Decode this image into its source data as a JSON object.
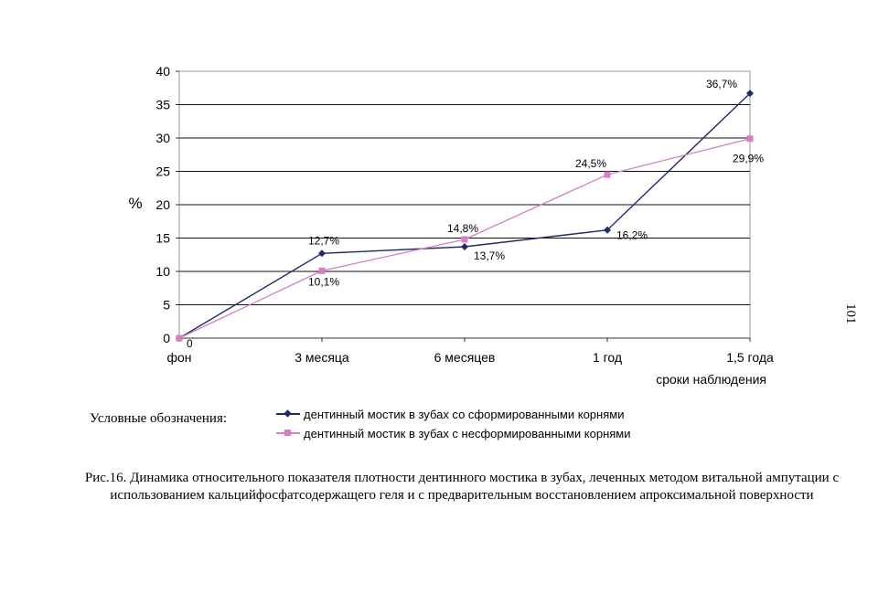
{
  "chart_data": {
    "type": "line",
    "categories": [
      "фон",
      "3 месяца",
      "6 месяцев",
      "1 год",
      "1,5 года"
    ],
    "series": [
      {
        "name": "дентинный мостик в зубах со сформированными корнями",
        "values": [
          0,
          12.7,
          13.7,
          16.2,
          36.7
        ],
        "labels": [
          "0",
          "12,7%",
          "13,7%",
          "16,2%",
          "36,7%"
        ],
        "color": "#1f2a6b",
        "marker": "diamond"
      },
      {
        "name": "дентинный мостик в зубах с несформированными корнями",
        "values": [
          0,
          10.1,
          14.8,
          24.5,
          29.9
        ],
        "labels": [
          "",
          "10,1%",
          "14,8%",
          "24,5%",
          "29,9%"
        ],
        "color": "#d67fc0",
        "marker": "square"
      }
    ],
    "ylabel": "%",
    "xlabel": "сроки наблюдения",
    "ylim": [
      0,
      40
    ],
    "yticks": [
      0,
      5,
      10,
      15,
      20,
      25,
      30,
      35,
      40
    ],
    "grid": true,
    "legend_position": "bottom"
  },
  "legend": {
    "caption": "Условные обозначения:"
  },
  "caption": "Рис.16.  Динамика относительного показателя плотности дентинного мостика в зубах, леченных методом     витальной ампутации с использованием кальцийфосфатсодержащего геля и с предварительным восстановлением апроксимальной поверхности",
  "page_number": "101"
}
